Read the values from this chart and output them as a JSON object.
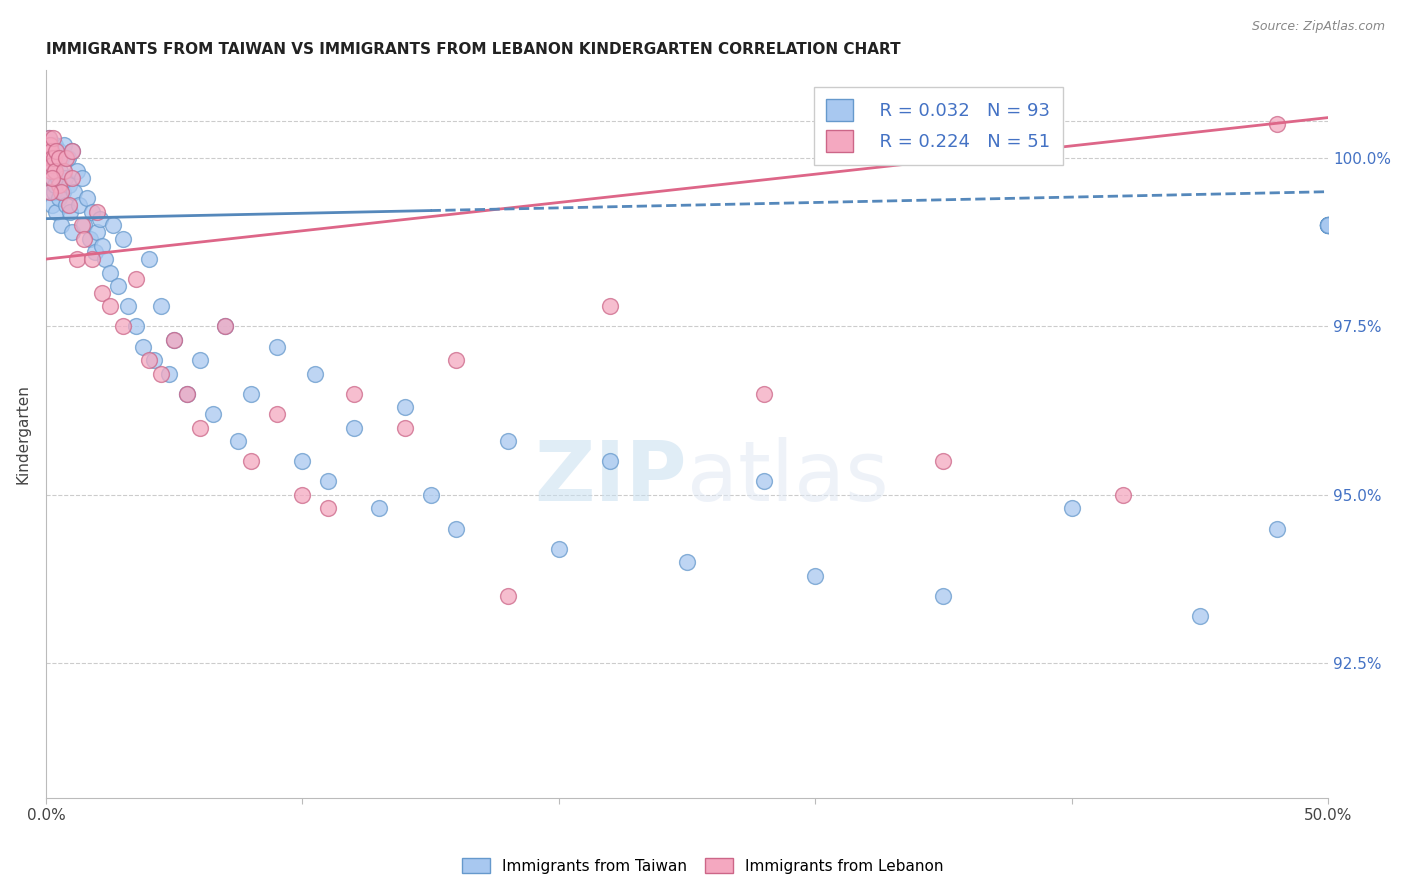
{
  "title": "IMMIGRANTS FROM TAIWAN VS IMMIGRANTS FROM LEBANON KINDERGARTEN CORRELATION CHART",
  "source": "Source: ZipAtlas.com",
  "ylabel": "Kindergarten",
  "x_min": 0.0,
  "x_max": 50.0,
  "y_min": 90.5,
  "y_max": 101.3,
  "y_ticks": [
    92.5,
    95.0,
    97.5,
    100.0
  ],
  "y_tick_labels": [
    "92.5%",
    "95.0%",
    "97.5%",
    "100.0%"
  ],
  "x_ticks": [
    0.0,
    10.0,
    20.0,
    30.0,
    40.0,
    50.0
  ],
  "x_tick_labels": [
    "0.0%",
    "",
    "",
    "",
    "",
    "50.0%"
  ],
  "legend_taiwan": "Immigrants from Taiwan",
  "legend_lebanon": "Immigrants from Lebanon",
  "R_taiwan": 0.032,
  "N_taiwan": 93,
  "R_lebanon": 0.224,
  "N_lebanon": 51,
  "taiwan_color": "#a8c8f0",
  "lebanon_color": "#f4a8c0",
  "taiwan_edge": "#6699cc",
  "lebanon_edge": "#cc6688",
  "taiwan_line_color": "#5588bb",
  "lebanon_line_color": "#dd6688",
  "background_color": "#ffffff",
  "grid_color": "#cccccc",
  "watermark_zip": "ZIP",
  "watermark_atlas": "atlas",
  "taiwan_x": [
    0.05,
    0.08,
    0.1,
    0.1,
    0.12,
    0.15,
    0.15,
    0.18,
    0.2,
    0.2,
    0.22,
    0.25,
    0.25,
    0.28,
    0.3,
    0.3,
    0.35,
    0.35,
    0.4,
    0.4,
    0.45,
    0.5,
    0.5,
    0.55,
    0.6,
    0.6,
    0.65,
    0.7,
    0.75,
    0.8,
    0.85,
    0.9,
    0.95,
    1.0,
    1.0,
    1.1,
    1.2,
    1.3,
    1.4,
    1.5,
    1.6,
    1.7,
    1.8,
    1.9,
    2.0,
    2.1,
    2.2,
    2.3,
    2.5,
    2.6,
    2.8,
    3.0,
    3.2,
    3.5,
    3.8,
    4.0,
    4.2,
    4.5,
    4.8,
    5.0,
    5.5,
    6.0,
    6.5,
    7.0,
    7.5,
    8.0,
    9.0,
    10.0,
    10.5,
    11.0,
    12.0,
    13.0,
    14.0,
    15.0,
    16.0,
    18.0,
    20.0,
    22.0,
    25.0,
    28.0,
    30.0,
    35.0,
    40.0,
    45.0,
    48.0,
    50.0,
    50.0,
    50.0,
    50.0,
    50.0,
    50.0,
    50.0,
    50.0
  ],
  "taiwan_y": [
    100.1,
    100.2,
    100.0,
    99.8,
    100.3,
    100.1,
    99.5,
    100.0,
    99.9,
    100.2,
    99.7,
    100.1,
    99.3,
    100.0,
    99.8,
    99.5,
    100.2,
    99.6,
    100.0,
    99.2,
    99.7,
    100.1,
    99.4,
    99.8,
    100.0,
    99.0,
    99.5,
    100.2,
    99.7,
    99.3,
    100.0,
    99.6,
    99.2,
    100.1,
    98.9,
    99.5,
    99.8,
    99.3,
    99.7,
    99.0,
    99.4,
    98.8,
    99.2,
    98.6,
    98.9,
    99.1,
    98.7,
    98.5,
    98.3,
    99.0,
    98.1,
    98.8,
    97.8,
    97.5,
    97.2,
    98.5,
    97.0,
    97.8,
    96.8,
    97.3,
    96.5,
    97.0,
    96.2,
    97.5,
    95.8,
    96.5,
    97.2,
    95.5,
    96.8,
    95.2,
    96.0,
    94.8,
    96.3,
    95.0,
    94.5,
    95.8,
    94.2,
    95.5,
    94.0,
    95.2,
    93.8,
    93.5,
    94.8,
    93.2,
    94.5,
    99.0,
    99.0,
    99.0,
    99.0,
    99.0,
    99.0,
    99.0,
    99.0
  ],
  "lebanon_x": [
    0.05,
    0.08,
    0.1,
    0.12,
    0.15,
    0.18,
    0.2,
    0.22,
    0.25,
    0.28,
    0.3,
    0.35,
    0.4,
    0.5,
    0.5,
    0.6,
    0.7,
    0.8,
    0.9,
    1.0,
    1.0,
    1.2,
    1.4,
    1.5,
    1.8,
    2.0,
    2.2,
    2.5,
    3.0,
    3.5,
    4.0,
    4.5,
    5.0,
    5.5,
    6.0,
    7.0,
    8.0,
    9.0,
    10.0,
    11.0,
    12.0,
    14.0,
    16.0,
    18.0,
    22.0,
    28.0,
    35.0,
    42.0,
    48.0,
    0.15,
    0.25
  ],
  "lebanon_y": [
    100.2,
    100.1,
    100.3,
    100.0,
    100.2,
    99.8,
    100.1,
    100.0,
    99.9,
    100.3,
    100.0,
    99.8,
    100.1,
    99.6,
    100.0,
    99.5,
    99.8,
    100.0,
    99.3,
    99.7,
    100.1,
    98.5,
    99.0,
    98.8,
    98.5,
    99.2,
    98.0,
    97.8,
    97.5,
    98.2,
    97.0,
    96.8,
    97.3,
    96.5,
    96.0,
    97.5,
    95.5,
    96.2,
    95.0,
    94.8,
    96.5,
    96.0,
    97.0,
    93.5,
    97.8,
    96.5,
    95.5,
    95.0,
    100.5,
    99.5,
    99.7
  ]
}
